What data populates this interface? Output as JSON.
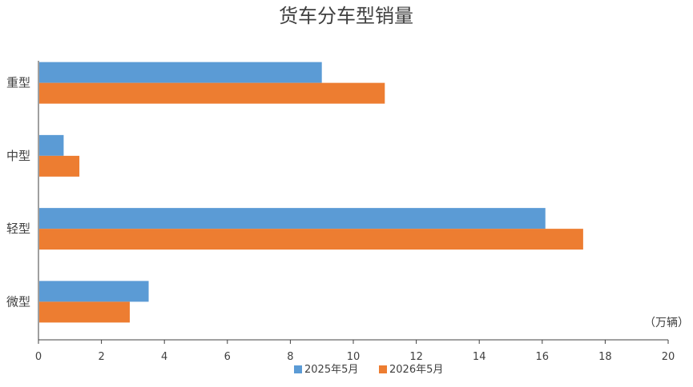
{
  "chart_data": {
    "type": "bar",
    "orientation": "horizontal",
    "title": "货车分车型销量",
    "unit_label": "（万辆）",
    "categories": [
      "重型",
      "中型",
      "轻型",
      "微型"
    ],
    "series": [
      {
        "name": "2025年5月",
        "color": "#5b9bd5",
        "values": [
          9.0,
          0.8,
          16.1,
          3.5
        ]
      },
      {
        "name": "2026年5月",
        "color": "#ed7d31",
        "values": [
          11.0,
          1.3,
          17.3,
          2.9
        ]
      }
    ],
    "xlim": [
      0,
      20
    ],
    "xticks": [
      "0",
      "2",
      "4",
      "6",
      "8",
      "10",
      "12",
      "14",
      "16",
      "18",
      "20"
    ],
    "grid": false,
    "legend_position": "bottom"
  }
}
